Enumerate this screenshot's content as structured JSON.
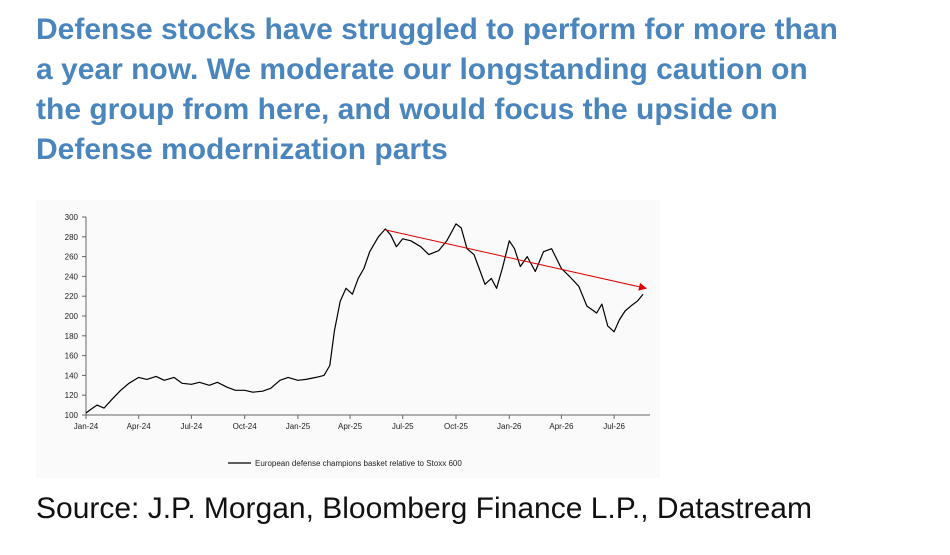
{
  "headline": {
    "line1": "Defense stocks have struggled to perform for more than",
    "line2": "a year now. We moderate our longstanding caution on",
    "line3": "the group from here, and would focus the upside on",
    "line4": "Defense modernization parts"
  },
  "source": "Source: J.P. Morgan, Bloomberg Finance L.P., Datastream",
  "colors": {
    "headline": "#4a86bd",
    "series": "#000000",
    "trend_arrow": "#e00000"
  },
  "chart_data": {
    "type": "line",
    "title": "",
    "xlabel": "",
    "ylabel": "",
    "ylim": [
      100,
      300
    ],
    "yticks": [
      100,
      120,
      140,
      160,
      180,
      200,
      220,
      240,
      260,
      280,
      300
    ],
    "xlim": [
      "2024-01",
      "2026-09"
    ],
    "xticks": [
      "Jan-24",
      "Apr-24",
      "Jul-24",
      "Oct-24",
      "Jan-25",
      "Apr-25",
      "Jul-25",
      "Oct-25",
      "Jan-26",
      "Apr-26",
      "Jul-26"
    ],
    "legend": {
      "placement": "bottom",
      "entries": [
        "European defense champions basket relative to Stoxx 600"
      ]
    },
    "grid": false,
    "series": [
      {
        "name": "European defense champions basket relative to Stoxx 600",
        "points": [
          [
            "2024-01-01",
            102
          ],
          [
            "2024-01-10",
            106
          ],
          [
            "2024-01-20",
            110
          ],
          [
            "2024-02-01",
            107
          ],
          [
            "2024-02-15",
            116
          ],
          [
            "2024-03-01",
            125
          ],
          [
            "2024-03-15",
            132
          ],
          [
            "2024-04-01",
            138
          ],
          [
            "2024-04-15",
            136
          ],
          [
            "2024-05-01",
            139
          ],
          [
            "2024-05-15",
            135
          ],
          [
            "2024-06-01",
            138
          ],
          [
            "2024-06-15",
            132
          ],
          [
            "2024-07-01",
            131
          ],
          [
            "2024-07-15",
            133
          ],
          [
            "2024-08-01",
            130
          ],
          [
            "2024-08-15",
            133
          ],
          [
            "2024-09-01",
            128
          ],
          [
            "2024-09-15",
            125
          ],
          [
            "2024-10-01",
            125
          ],
          [
            "2024-10-15",
            123
          ],
          [
            "2024-11-01",
            124
          ],
          [
            "2024-11-15",
            127
          ],
          [
            "2024-12-01",
            135
          ],
          [
            "2024-12-15",
            138
          ],
          [
            "2025-01-01",
            135
          ],
          [
            "2025-01-15",
            136
          ],
          [
            "2025-02-01",
            138
          ],
          [
            "2025-02-15",
            140
          ],
          [
            "2025-02-25",
            150
          ],
          [
            "2025-03-05",
            185
          ],
          [
            "2025-03-15",
            215
          ],
          [
            "2025-03-25",
            228
          ],
          [
            "2025-04-05",
            222
          ],
          [
            "2025-04-15",
            238
          ],
          [
            "2025-04-25",
            248
          ],
          [
            "2025-05-05",
            265
          ],
          [
            "2025-05-20",
            280
          ],
          [
            "2025-06-01",
            288
          ],
          [
            "2025-06-10",
            282
          ],
          [
            "2025-06-20",
            270
          ],
          [
            "2025-07-01",
            278
          ],
          [
            "2025-07-15",
            276
          ],
          [
            "2025-08-01",
            270
          ],
          [
            "2025-08-15",
            262
          ],
          [
            "2025-09-01",
            266
          ],
          [
            "2025-09-15",
            276
          ],
          [
            "2025-10-01",
            293
          ],
          [
            "2025-10-10",
            289
          ],
          [
            "2025-10-20",
            268
          ],
          [
            "2025-11-01",
            262
          ],
          [
            "2025-11-10",
            248
          ],
          [
            "2025-11-20",
            232
          ],
          [
            "2025-12-01",
            238
          ],
          [
            "2025-12-10",
            228
          ],
          [
            "2025-12-20",
            248
          ],
          [
            "2026-01-01",
            276
          ],
          [
            "2026-01-10",
            268
          ],
          [
            "2026-01-20",
            250
          ],
          [
            "2026-02-01",
            260
          ],
          [
            "2026-02-15",
            245
          ],
          [
            "2026-03-01",
            265
          ],
          [
            "2026-03-15",
            268
          ],
          [
            "2026-04-01",
            248
          ],
          [
            "2026-04-15",
            240
          ],
          [
            "2026-05-01",
            230
          ],
          [
            "2026-05-15",
            210
          ],
          [
            "2026-06-01",
            203
          ],
          [
            "2026-06-10",
            212
          ],
          [
            "2026-06-20",
            190
          ],
          [
            "2026-07-01",
            184
          ],
          [
            "2026-07-10",
            196
          ],
          [
            "2026-07-20",
            205
          ],
          [
            "2026-08-01",
            211
          ],
          [
            "2026-08-10",
            215
          ],
          [
            "2026-08-20",
            222
          ]
        ]
      }
    ],
    "annotations": [
      {
        "type": "trend-arrow",
        "from": [
          "2025-06-01",
          287
        ],
        "to": [
          "2026-08-25",
          228
        ]
      }
    ]
  }
}
